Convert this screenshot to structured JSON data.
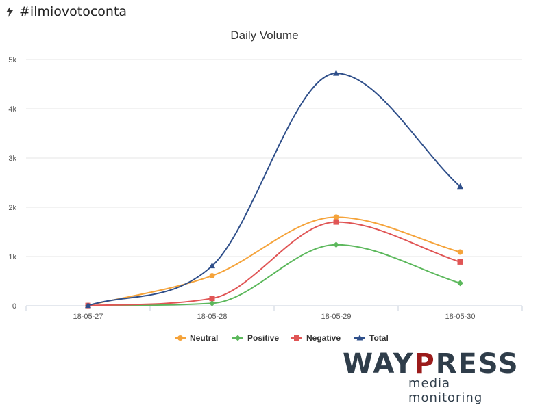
{
  "header": {
    "icon": "bolt-icon",
    "title": "#ilmiovotoconta"
  },
  "chart_data": {
    "type": "line",
    "title": "Daily Volume",
    "categories": [
      "18-05-27",
      "18-05-28",
      "18-05-29",
      "18-05-30"
    ],
    "ylim": [
      0,
      5000
    ],
    "yticks": [
      0,
      1000,
      2000,
      3000,
      4000,
      5000
    ],
    "ytick_labels": [
      "0",
      "1k",
      "2k",
      "3k",
      "4k",
      "5k"
    ],
    "grid": true,
    "legend_position": "bottom-center",
    "smooth": true,
    "series": [
      {
        "name": "Neutral",
        "color": "#f5a33a",
        "marker": "circle",
        "values": [
          5,
          610,
          1800,
          1090
        ]
      },
      {
        "name": "Positive",
        "color": "#5cb85c",
        "marker": "diamond",
        "values": [
          5,
          50,
          1240,
          460
        ]
      },
      {
        "name": "Negative",
        "color": "#e05555",
        "marker": "square",
        "values": [
          5,
          150,
          1700,
          890
        ]
      },
      {
        "name": "Total",
        "color": "#2f4f8a",
        "marker": "triangle",
        "values": [
          5,
          810,
          4720,
          2420
        ]
      }
    ]
  },
  "logo": {
    "brand_prefix": "WAY",
    "brand_highlight": "P",
    "brand_suffix": "RESS",
    "tagline": "media monitoring"
  }
}
